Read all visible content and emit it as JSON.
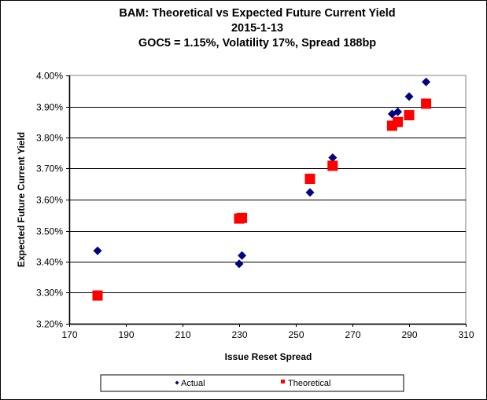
{
  "chart_data": {
    "type": "scatter",
    "title": [
      "BAM: Theoretical vs Expected Future Current Yield",
      "2015-1-13",
      "GOC5 = 1.15%, Volatility 17%, Spread 188bp"
    ],
    "xlabel": "Issue Reset Spread",
    "ylabel": "Expected Future Current Yield",
    "xlim": [
      170,
      310
    ],
    "ylim": [
      3.2,
      4.0
    ],
    "xticks": [
      "170",
      "190",
      "210",
      "230",
      "250",
      "270",
      "290",
      "310"
    ],
    "yticks": [
      "3.20%",
      "3.30%",
      "3.40%",
      "3.50%",
      "3.60%",
      "3.70%",
      "3.80%",
      "3.90%",
      "4.00%"
    ],
    "grid": "horizontal",
    "legend_position": "bottom",
    "series": [
      {
        "name": "Actual",
        "marker": "diamond",
        "color": "#000080",
        "points": [
          [
            180,
            3.435
          ],
          [
            230,
            3.393
          ],
          [
            231,
            3.42
          ],
          [
            255,
            3.623
          ],
          [
            263,
            3.735
          ],
          [
            284,
            3.876
          ],
          [
            286,
            3.883
          ],
          [
            290,
            3.932
          ],
          [
            296,
            3.979
          ]
        ]
      },
      {
        "name": "Theoretical",
        "marker": "square",
        "color": "#ff0000",
        "points": [
          [
            180,
            3.291
          ],
          [
            230,
            3.539
          ],
          [
            231,
            3.541
          ],
          [
            255,
            3.667
          ],
          [
            263,
            3.709
          ],
          [
            284,
            3.838
          ],
          [
            286,
            3.85
          ],
          [
            290,
            3.872
          ],
          [
            296,
            3.909
          ]
        ]
      }
    ]
  }
}
